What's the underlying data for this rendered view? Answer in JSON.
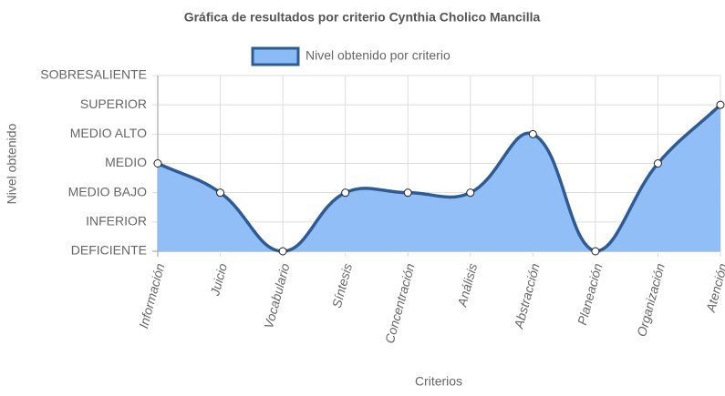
{
  "chart_data": {
    "type": "area",
    "title": "Gráfica de resultados por criterio Cynthia Cholico Mancilla",
    "x_label": "Criterios",
    "y_label": "Nivel obtenido",
    "categories": [
      "Información",
      "Juicio",
      "Vocabulario",
      "Síntesis",
      "Concentración",
      "Análisis",
      "Abstracción",
      "Planeación",
      "Organización",
      "Atención"
    ],
    "series": [
      {
        "name": "Nivel obtenido por criterio",
        "color": "#8bbbf5",
        "line_color": "#2e5b93",
        "values": [
          3,
          2,
          0,
          2,
          2,
          2,
          4,
          0,
          3,
          5
        ]
      }
    ],
    "ylim": [
      0,
      6
    ],
    "yticks": [
      {
        "value": 0,
        "label": "DEFICIENTE"
      },
      {
        "value": 1,
        "label": "INFERIOR"
      },
      {
        "value": 2,
        "label": "MEDIO BAJO"
      },
      {
        "value": 3,
        "label": "MEDIO"
      },
      {
        "value": 4,
        "label": "MEDIO ALTO"
      },
      {
        "value": 5,
        "label": "SUPERIOR"
      },
      {
        "value": 6,
        "label": "SOBRESALIENTE"
      }
    ],
    "grid": true,
    "legend": "top"
  }
}
